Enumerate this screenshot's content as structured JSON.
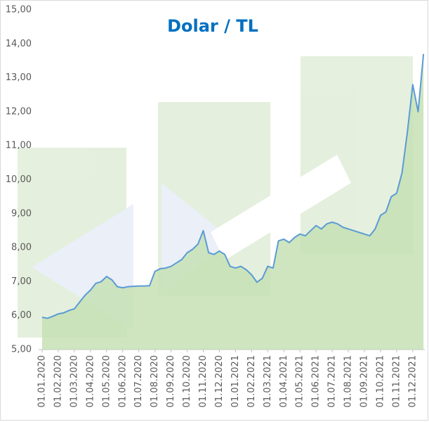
{
  "chart_data": {
    "type": "area",
    "title": "Dolar / TL",
    "categories": [
      "01.01.2020",
      null,
      null,
      "01.02.2020",
      null,
      null,
      "01.03.2020",
      null,
      null,
      "01.04.2020",
      null,
      null,
      "01.05.2020",
      null,
      null,
      "01.06.2020",
      null,
      null,
      "01.07.2020",
      null,
      null,
      "01.08.2020",
      null,
      null,
      "01.09.2020",
      null,
      null,
      "01.10.2020",
      null,
      null,
      "01.11.2020",
      null,
      null,
      "01.12.2020",
      null,
      null,
      "01.01.2021",
      null,
      null,
      "01.02.2021",
      null,
      null,
      "01.03.2021",
      null,
      null,
      "01.04.2021",
      null,
      null,
      "01.05.2021",
      null,
      null,
      "01.06.2021",
      null,
      null,
      "01.07.2021",
      null,
      null,
      "01.08.2021",
      null,
      null,
      "01.09.2021",
      null,
      null,
      "01.10.2021",
      null,
      null,
      "01.11.2021",
      null,
      null,
      "01.12.2021",
      null,
      null
    ],
    "values": [
      5.95,
      5.92,
      5.98,
      6.05,
      6.08,
      6.15,
      6.2,
      6.4,
      6.6,
      6.75,
      6.95,
      7.0,
      7.15,
      7.05,
      6.85,
      6.82,
      6.85,
      6.86,
      6.87,
      6.87,
      6.88,
      7.3,
      7.38,
      7.4,
      7.45,
      7.55,
      7.65,
      7.85,
      7.95,
      8.1,
      8.5,
      7.85,
      7.8,
      7.9,
      7.8,
      7.45,
      7.4,
      7.45,
      7.35,
      7.2,
      6.98,
      7.1,
      7.45,
      7.4,
      8.2,
      8.25,
      8.15,
      8.3,
      8.4,
      8.35,
      8.5,
      8.65,
      8.55,
      8.7,
      8.75,
      8.7,
      8.6,
      8.55,
      8.5,
      8.45,
      8.4,
      8.35,
      8.55,
      8.95,
      9.05,
      9.5,
      9.6,
      10.2,
      11.4,
      12.8,
      12.0,
      13.7
    ],
    "color": "#5b9bd5",
    "fill": "#c5e0b4",
    "ylim": [
      5,
      15
    ],
    "yticks": [
      {
        "value": 5,
        "label": "5,00"
      },
      {
        "value": 6,
        "label": "6,00"
      },
      {
        "value": 7,
        "label": "7,00"
      },
      {
        "value": 8,
        "label": "8,00"
      },
      {
        "value": 9,
        "label": "9,00"
      },
      {
        "value": 10,
        "label": "10,00"
      },
      {
        "value": 11,
        "label": "11,00"
      },
      {
        "value": 12,
        "label": "12,00"
      },
      {
        "value": 13,
        "label": "13,00"
      },
      {
        "value": 14,
        "label": "14,00"
      },
      {
        "value": 15,
        "label": "15,00"
      }
    ],
    "grid": false
  }
}
